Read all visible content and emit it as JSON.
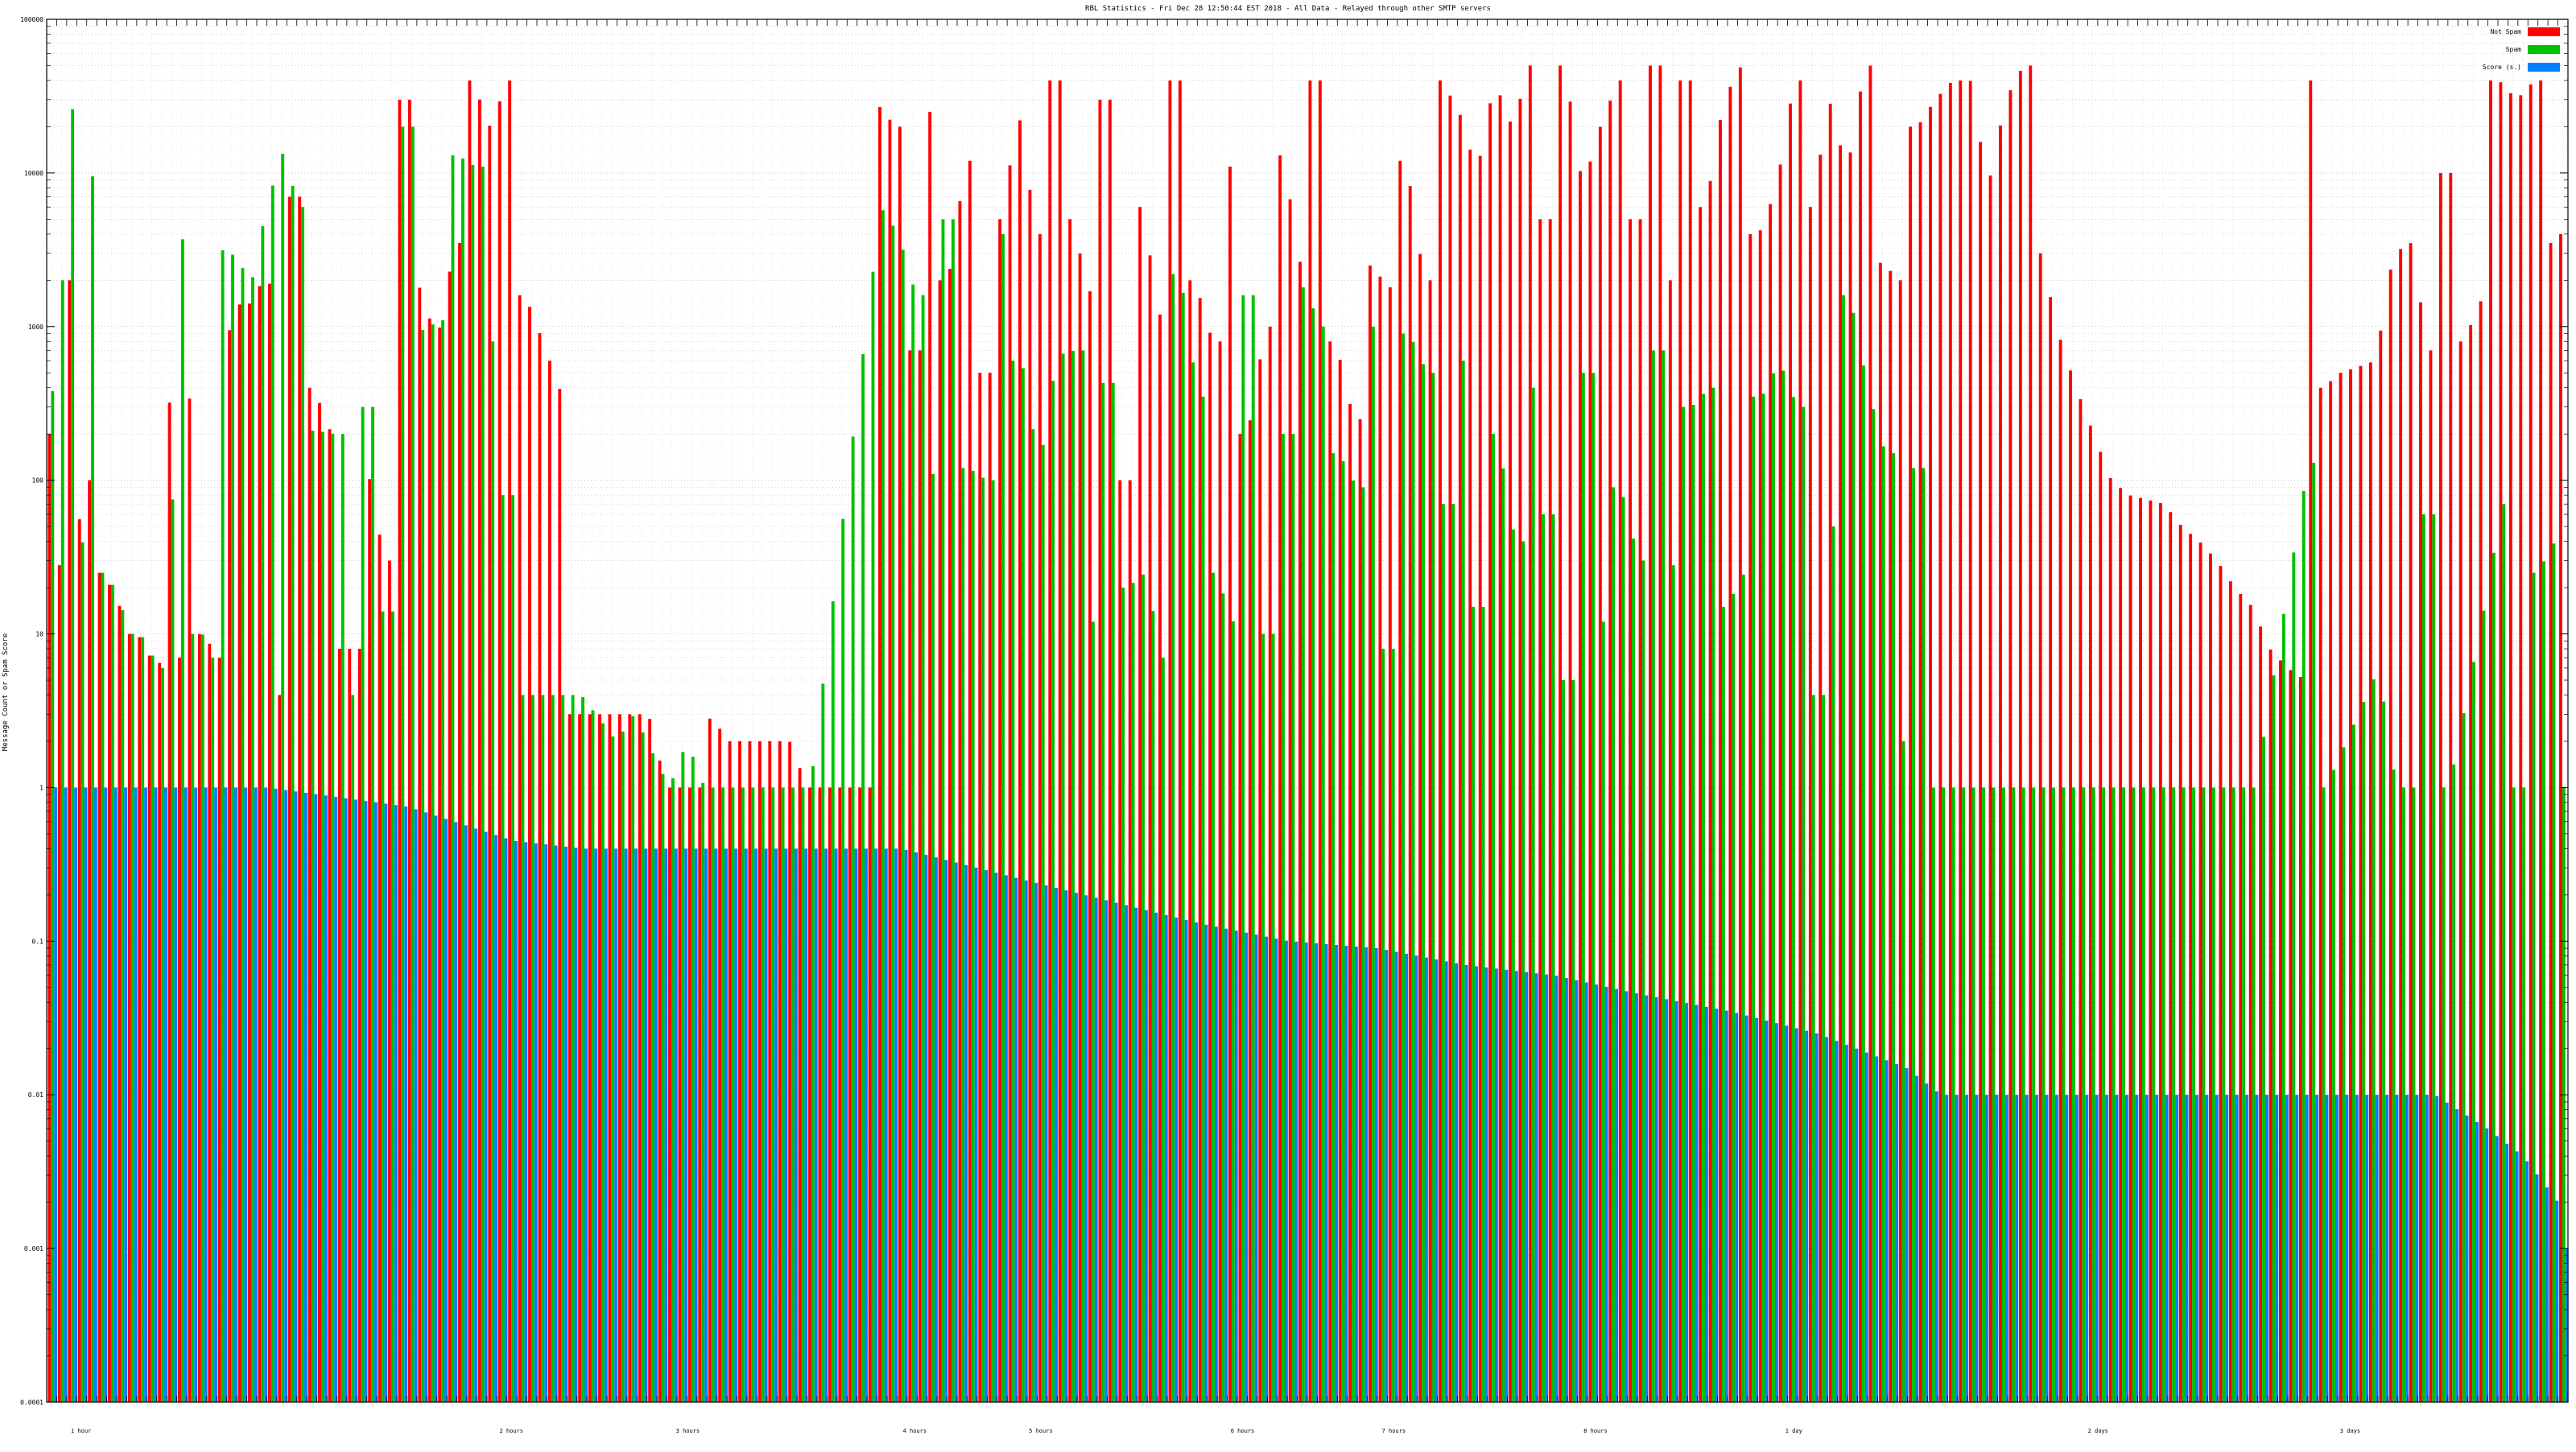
{
  "chart_data": {
    "type": "bar",
    "title": "RBL Statistics - Fri Dec 28 12:50:44 EST 2018 - All Data - Relayed through other SMTP servers",
    "xlabel": "",
    "ylabel": "Message Count or Spam Score",
    "y_scale": "log",
    "ylim": [
      0.0001,
      100000
    ],
    "y_ticks": [
      {
        "value": 100000,
        "label": "100000"
      },
      {
        "value": 10000,
        "label": "10000"
      },
      {
        "value": 1000,
        "label": "1000"
      },
      {
        "value": 100,
        "label": "100"
      },
      {
        "value": 10,
        "label": "10"
      },
      {
        "value": 1,
        "label": "1"
      },
      {
        "value": 0.1,
        "label": "0.1"
      },
      {
        "value": 0.01,
        "label": "0.01"
      },
      {
        "value": 0.001,
        "label": "0.001"
      },
      {
        "value": 0.0001,
        "label": "0.0001"
      }
    ],
    "grid": true,
    "legend_position": "top-right",
    "series": [
      {
        "name": "Not Spam",
        "color": "#ff0000"
      },
      {
        "name": "Spam",
        "color": "#00c000"
      },
      {
        "name": "Score (s.)",
        "color": "#0080ff"
      }
    ],
    "group_count": 252,
    "not_spam_profile": [
      [
        0,
        200
      ],
      [
        1,
        28
      ],
      [
        2,
        2000
      ],
      [
        3,
        60
      ],
      [
        4,
        50
      ],
      [
        5,
        180
      ],
      [
        6,
        25
      ],
      [
        7,
        20
      ],
      [
        8,
        15
      ],
      [
        9,
        10
      ],
      [
        10,
        10
      ],
      [
        11,
        8
      ],
      [
        12,
        6
      ],
      [
        13,
        7
      ],
      [
        14,
        320
      ],
      [
        15,
        7
      ],
      [
        16,
        340
      ],
      [
        17,
        10
      ],
      [
        18,
        9
      ],
      [
        19,
        7
      ],
      [
        20,
        600
      ],
      [
        21,
        1700
      ],
      [
        22,
        1200
      ],
      [
        24,
        1900
      ],
      [
        26,
        4
      ],
      [
        28,
        7000
      ],
      [
        30,
        400
      ],
      [
        32,
        200
      ],
      [
        33,
        8
      ],
      [
        34,
        8
      ],
      [
        35,
        8
      ],
      [
        36,
        130
      ],
      [
        38,
        30
      ],
      [
        40,
        30000
      ],
      [
        42,
        1800
      ],
      [
        44,
        800
      ],
      [
        46,
        3500
      ],
      [
        48,
        40000
      ],
      [
        50,
        20000
      ],
      [
        52,
        40000
      ],
      [
        54,
        1600
      ],
      [
        56,
        800
      ],
      [
        58,
        380
      ],
      [
        60,
        3
      ],
      [
        68,
        3
      ],
      [
        70,
        1
      ],
      [
        74,
        1
      ],
      [
        75,
        3
      ],
      [
        77,
        2
      ],
      [
        84,
        2
      ],
      [
        86,
        1
      ],
      [
        92,
        1
      ],
      [
        93,
        1
      ],
      [
        94,
        28000
      ],
      [
        96,
        20000
      ],
      [
        98,
        700
      ],
      [
        100,
        25000
      ],
      [
        102,
        2000
      ],
      [
        104,
        12000
      ],
      [
        106,
        500
      ],
      [
        108,
        5000
      ],
      [
        110,
        25000
      ],
      [
        112,
        4000
      ],
      [
        114,
        40000
      ],
      [
        116,
        5000
      ],
      [
        118,
        1700
      ],
      [
        120,
        30000
      ],
      [
        122,
        100
      ],
      [
        124,
        6000
      ],
      [
        126,
        1200
      ],
      [
        128,
        40000
      ],
      [
        130,
        2000
      ],
      [
        132,
        800
      ],
      [
        134,
        11000
      ],
      [
        136,
        200
      ],
      [
        138,
        1000
      ],
      [
        140,
        13000
      ],
      [
        142,
        2500
      ],
      [
        144,
        40000
      ],
      [
        146,
        800
      ],
      [
        148,
        250
      ],
      [
        150,
        2500
      ],
      [
        152,
        1800
      ],
      [
        154,
        12000
      ],
      [
        156,
        2000
      ],
      [
        158,
        40000
      ],
      [
        160,
        25000
      ],
      [
        162,
        10000
      ],
      [
        164,
        40000
      ],
      [
        166,
        20000
      ],
      [
        168,
        50000
      ],
      [
        170,
        5000
      ],
      [
        172,
        50000
      ],
      [
        174,
        8000
      ],
      [
        176,
        20000
      ],
      [
        178,
        40000
      ],
      [
        180,
        5000
      ],
      [
        182,
        50000
      ],
      [
        184,
        2000
      ],
      [
        186,
        40000
      ],
      [
        188,
        6000
      ],
      [
        190,
        30000
      ],
      [
        192,
        50000
      ],
      [
        194,
        4000
      ],
      [
        196,
        8000
      ],
      [
        198,
        40000
      ],
      [
        200,
        6000
      ],
      [
        202,
        30000
      ],
      [
        204,
        10000
      ],
      [
        206,
        50000
      ],
      [
        208,
        2600
      ],
      [
        210,
        2000
      ],
      [
        212,
        20000
      ],
      [
        214,
        30000
      ],
      [
        216,
        40000
      ],
      [
        218,
        40000
      ],
      [
        220,
        8000
      ],
      [
        222,
        30000
      ],
      [
        224,
        50000
      ],
      [
        226,
        3000
      ],
      [
        228,
        900
      ],
      [
        230,
        400
      ],
      [
        232,
        200
      ],
      [
        234,
        100
      ],
      [
        236,
        80
      ],
      [
        238,
        75
      ],
      [
        240,
        70
      ],
      [
        242,
        50
      ],
      [
        244,
        40
      ],
      [
        246,
        30
      ],
      [
        248,
        20
      ],
      [
        250,
        15
      ],
      [
        252,
        8
      ],
      [
        254,
        6
      ],
      [
        256,
        5
      ],
      [
        257,
        40000
      ],
      [
        258,
        400
      ],
      [
        260,
        500
      ],
      [
        264,
        600
      ],
      [
        266,
        3000
      ],
      [
        268,
        3500
      ],
      [
        270,
        700
      ],
      [
        272,
        10000
      ],
      [
        274,
        800
      ],
      [
        276,
        1500
      ],
      [
        278,
        40000
      ],
      [
        280,
        30000
      ],
      [
        282,
        40000
      ],
      [
        284,
        3500
      ],
      [
        285,
        4000
      ]
    ],
    "spam_profile": [
      [
        0,
        380
      ],
      [
        1,
        2000
      ],
      [
        2,
        26000
      ],
      [
        3,
        28
      ],
      [
        4,
        65
      ],
      [
        5,
        9500
      ],
      [
        6,
        25
      ],
      [
        7,
        20
      ],
      [
        8,
        14
      ],
      [
        9,
        10
      ],
      [
        10,
        10
      ],
      [
        11,
        8
      ],
      [
        12,
        6
      ],
      [
        13,
        4700
      ],
      [
        14,
        75
      ],
      [
        15,
        3700
      ],
      [
        16,
        10
      ],
      [
        17,
        10
      ],
      [
        18,
        7
      ],
      [
        19,
        4000
      ],
      [
        20,
        1800
      ],
      [
        21,
        5500
      ],
      [
        22,
        1300
      ],
      [
        24,
        5000
      ],
      [
        26,
        14000
      ],
      [
        28,
        6000
      ],
      [
        30,
        210
      ],
      [
        32,
        200
      ],
      [
        34,
        4
      ],
      [
        36,
        300
      ],
      [
        38,
        14
      ],
      [
        40,
        20000
      ],
      [
        42,
        950
      ],
      [
        44,
        1100
      ],
      [
        46,
        13000
      ],
      [
        48,
        11000
      ],
      [
        50,
        800
      ],
      [
        52,
        80
      ],
      [
        54,
        4
      ],
      [
        60,
        4
      ],
      [
        64,
        2
      ],
      [
        66,
        3
      ],
      [
        70,
        1
      ],
      [
        72,
        2
      ],
      [
        74,
        1
      ],
      [
        84,
        1
      ],
      [
        86,
        1
      ],
      [
        94,
        6000
      ],
      [
        96,
        4000
      ],
      [
        98,
        1600
      ],
      [
        100,
        110
      ],
      [
        102,
        5000
      ],
      [
        104,
        120
      ],
      [
        106,
        100
      ],
      [
        108,
        4000
      ],
      [
        110,
        600
      ],
      [
        112,
        120
      ],
      [
        114,
        650
      ],
      [
        116,
        700
      ],
      [
        118,
        12
      ],
      [
        120,
        430
      ],
      [
        122,
        20
      ],
      [
        124,
        25
      ],
      [
        126,
        7
      ],
      [
        128,
        2200
      ],
      [
        130,
        350
      ],
      [
        132,
        25
      ],
      [
        134,
        12
      ],
      [
        136,
        1600
      ],
      [
        138,
        10
      ],
      [
        140,
        200
      ],
      [
        142,
        1800
      ],
      [
        144,
        1000
      ],
      [
        146,
        150
      ],
      [
        148,
        90
      ],
      [
        150,
        1000
      ],
      [
        152,
        8
      ],
      [
        154,
        900
      ],
      [
        156,
        500
      ],
      [
        158,
        70
      ],
      [
        160,
        600
      ],
      [
        162,
        15
      ],
      [
        164,
        200
      ],
      [
        166,
        40
      ],
      [
        168,
        400
      ],
      [
        170,
        60
      ],
      [
        172,
        5
      ],
      [
        174,
        500
      ],
      [
        176,
        12
      ],
      [
        178,
        90
      ],
      [
        180,
        30
      ],
      [
        182,
        700
      ],
      [
        184,
        28
      ],
      [
        186,
        300
      ],
      [
        188,
        400
      ],
      [
        190,
        15
      ],
      [
        192,
        25
      ],
      [
        194,
        350
      ],
      [
        196,
        600
      ],
      [
        198,
        300
      ],
      [
        200,
        4
      ],
      [
        202,
        50
      ],
      [
        204,
        1600
      ],
      [
        206,
        400
      ],
      [
        208,
        150
      ],
      [
        210,
        2
      ],
      [
        212,
        120
      ],
      [
        214,
        1
      ],
      [
        216,
        1
      ],
      [
        250,
        1
      ],
      [
        256,
        130
      ],
      [
        258,
        1
      ],
      [
        264,
        6
      ],
      [
        266,
        1
      ],
      [
        268,
        1
      ],
      [
        270,
        60
      ],
      [
        272,
        1
      ],
      [
        276,
        15
      ],
      [
        278,
        70
      ],
      [
        280,
        1
      ],
      [
        282,
        25
      ],
      [
        284,
        40
      ],
      [
        285,
        1
      ]
    ],
    "score_profile": [
      [
        0,
        1
      ],
      [
        24,
        1
      ],
      [
        40,
        0.75
      ],
      [
        52,
        0.45
      ],
      [
        60,
        0.4
      ],
      [
        96,
        0.4
      ],
      [
        100,
        0.35
      ],
      [
        110,
        0.25
      ],
      [
        120,
        0.18
      ],
      [
        130,
        0.13
      ],
      [
        140,
        0.1
      ],
      [
        150,
        0.09
      ],
      [
        160,
        0.07
      ],
      [
        170,
        0.06
      ],
      [
        180,
        0.045
      ],
      [
        190,
        0.035
      ],
      [
        200,
        0.025
      ],
      [
        210,
        0.015
      ],
      [
        214,
        0.01
      ],
      [
        270,
        0.01
      ],
      [
        276,
        0.006
      ],
      [
        280,
        0.004
      ],
      [
        284,
        0.002
      ],
      [
        285,
        0.001
      ]
    ],
    "x_group_labels": [
      "1 hour",
      "2 hours",
      "3 hours",
      "4 hours",
      "5 hours",
      "6 hours",
      "7 hours",
      "8 hours",
      "1 day",
      "2 days",
      "3 days"
    ]
  }
}
